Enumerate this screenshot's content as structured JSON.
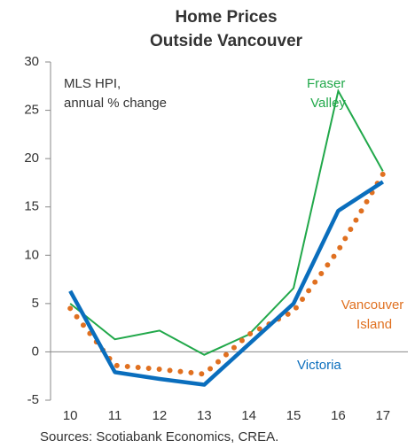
{
  "chart_data": {
    "type": "line",
    "title": [
      "Home Prices",
      "Outside Vancouver"
    ],
    "annotation": [
      "MLS HPI,",
      "annual % change"
    ],
    "source": "Sources: Scotiabank Economics, CREA.",
    "categories": [
      "10",
      "11",
      "12",
      "13",
      "14",
      "15",
      "16",
      "17"
    ],
    "ylim": [
      -5,
      30
    ],
    "yticks": [
      -5,
      0,
      5,
      10,
      15,
      20,
      25,
      30
    ],
    "series": [
      {
        "name": "Fraser Valley",
        "color": "#21a84a",
        "style": "thin",
        "values": [
          5.0,
          1.3,
          2.2,
          -0.3,
          1.8,
          6.6,
          27.0,
          18.7
        ]
      },
      {
        "name": "Vancouver Island",
        "color": "#e07020",
        "style": "dotted",
        "values": [
          4.5,
          -1.4,
          -1.8,
          -2.3,
          1.8,
          4.2,
          10.5,
          18.4
        ]
      },
      {
        "name": "Victoria",
        "color": "#0a6ebd",
        "style": "thick",
        "values": [
          6.3,
          -2.1,
          -2.8,
          -3.4,
          0.8,
          5.0,
          14.6,
          17.6
        ]
      }
    ]
  }
}
